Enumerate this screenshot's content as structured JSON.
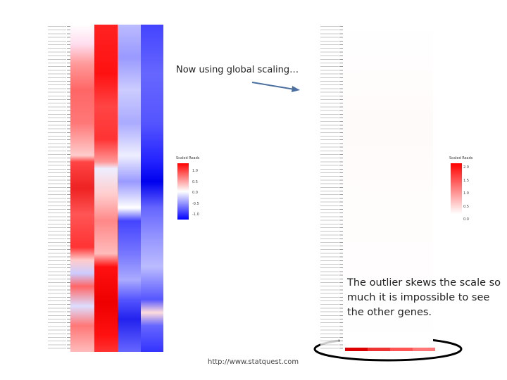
{
  "slide": {
    "note": "Now using global scaling…",
    "caption": "The outlier skews the scale so much it is impossible to see the other genes.",
    "url": "http://www.statquest.com"
  },
  "left_legend": {
    "title": "Scaled Reads",
    "labels": [
      "1.0",
      "0.5",
      "0.0",
      "-0.5",
      "-1.0"
    ]
  },
  "right_legend": {
    "title": "Scaled Reads",
    "labels": [
      "2.0",
      "1.5",
      "1.0",
      "0.5",
      "0.0"
    ]
  }
}
